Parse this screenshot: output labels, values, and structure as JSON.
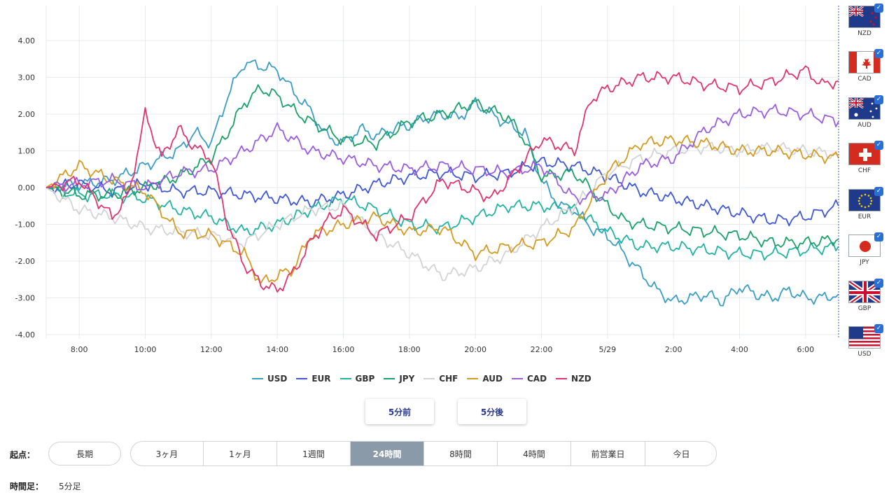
{
  "chart_data": {
    "type": "line",
    "x_tick_labels": [
      "8:00",
      "10:00",
      "12:00",
      "14:00",
      "16:00",
      "18:00",
      "20:00",
      "22:00",
      "5/29",
      "2:00",
      "4:00",
      "6:00"
    ],
    "x_tick_hours": [
      1,
      3,
      5,
      7,
      9,
      11,
      13,
      15,
      17,
      19,
      21,
      23
    ],
    "x_range_hours": [
      0,
      24
    ],
    "ylim": [
      -4.0,
      4.0
    ],
    "y_ticks": [
      "4.00",
      "3.00",
      "2.00",
      "1.00",
      "0.00",
      "-1.00",
      "-2.00",
      "-3.00",
      "-4.00"
    ],
    "grid": true,
    "legend_position": "bottom",
    "series": [
      {
        "name": "USD",
        "color": "#3a9dc4",
        "points": [
          [
            0,
            0
          ],
          [
            1,
            0.1
          ],
          [
            2,
            0.2
          ],
          [
            3,
            0.6
          ],
          [
            4,
            1.0
          ],
          [
            4.5,
            1.5
          ],
          [
            5,
            1.2
          ],
          [
            5.5,
            2.5
          ],
          [
            6,
            3.4
          ],
          [
            6.5,
            3.3
          ],
          [
            7,
            3.2
          ],
          [
            7.5,
            2.6
          ],
          [
            8,
            2.1
          ],
          [
            8.5,
            1.4
          ],
          [
            9,
            1.2
          ],
          [
            9.5,
            1.6
          ],
          [
            10,
            1.4
          ],
          [
            10.5,
            1.6
          ],
          [
            11,
            1.7
          ],
          [
            11.5,
            1.9
          ],
          [
            12,
            2.0
          ],
          [
            12.5,
            1.9
          ],
          [
            13,
            2.3
          ],
          [
            13.5,
            2.0
          ],
          [
            14,
            1.7
          ],
          [
            14.5,
            1.5
          ],
          [
            15,
            0.2
          ],
          [
            15.3,
            -0.2
          ],
          [
            15.6,
            -0.5
          ],
          [
            16,
            -0.6
          ],
          [
            16.5,
            -1.1
          ],
          [
            17,
            -1.3
          ],
          [
            17.5,
            -1.8
          ],
          [
            18,
            -2.3
          ],
          [
            18.5,
            -2.8
          ],
          [
            19,
            -3.1
          ],
          [
            19.5,
            -3.0
          ],
          [
            20,
            -2.9
          ],
          [
            20.5,
            -3.1
          ],
          [
            21,
            -2.7
          ],
          [
            21.5,
            -2.9
          ],
          [
            22,
            -3.0
          ],
          [
            22.5,
            -2.8
          ],
          [
            23,
            -3.0
          ],
          [
            23.5,
            -3.0
          ],
          [
            24,
            -2.9
          ]
        ]
      },
      {
        "name": "EUR",
        "color": "#3d57d6",
        "points": [
          [
            0,
            0
          ],
          [
            1,
            0.1
          ],
          [
            2,
            -0.1
          ],
          [
            3,
            0.1
          ],
          [
            4,
            -0.1
          ],
          [
            5,
            -0.1
          ],
          [
            6,
            -0.2
          ],
          [
            7,
            -0.3
          ],
          [
            8,
            -0.4
          ],
          [
            9,
            -0.2
          ],
          [
            10,
            0.1
          ],
          [
            11,
            0.3
          ],
          [
            12,
            0.4
          ],
          [
            13,
            0.3
          ],
          [
            14,
            0.4
          ],
          [
            15,
            0.7
          ],
          [
            16,
            0.6
          ],
          [
            17,
            0.3
          ],
          [
            18,
            -0.1
          ],
          [
            19,
            -0.3
          ],
          [
            20,
            -0.5
          ],
          [
            21,
            -0.7
          ],
          [
            22,
            -0.9
          ],
          [
            23,
            -0.8
          ],
          [
            24,
            -0.5
          ]
        ]
      },
      {
        "name": "GBP",
        "color": "#21b3a3",
        "points": [
          [
            0,
            0
          ],
          [
            1,
            -0.2
          ],
          [
            2,
            -0.2
          ],
          [
            3,
            -0.3
          ],
          [
            4,
            -0.6
          ],
          [
            5,
            -0.8
          ],
          [
            6,
            -1.2
          ],
          [
            7,
            -1.0
          ],
          [
            8,
            -0.6
          ],
          [
            9,
            -0.3
          ],
          [
            10,
            -0.6
          ],
          [
            11,
            -1.0
          ],
          [
            12,
            -1.1
          ],
          [
            13,
            -0.8
          ],
          [
            14,
            -0.5
          ],
          [
            15,
            -0.5
          ],
          [
            16,
            -0.6
          ],
          [
            17,
            -1.2
          ],
          [
            18,
            -1.6
          ],
          [
            19,
            -1.6
          ],
          [
            20,
            -1.7
          ],
          [
            21,
            -1.8
          ],
          [
            22,
            -1.8
          ],
          [
            23,
            -1.7
          ],
          [
            24,
            -1.6
          ]
        ]
      },
      {
        "name": "JPY",
        "color": "#1aa168",
        "points": [
          [
            0,
            0
          ],
          [
            1,
            -0.2
          ],
          [
            2,
            -0.2
          ],
          [
            3,
            0.0
          ],
          [
            4,
            0.3
          ],
          [
            5,
            0.8
          ],
          [
            5.5,
            1.5
          ],
          [
            6,
            2.3
          ],
          [
            6.5,
            2.7
          ],
          [
            7,
            2.5
          ],
          [
            7.5,
            2.1
          ],
          [
            8,
            1.8
          ],
          [
            9,
            1.3
          ],
          [
            10,
            1.2
          ],
          [
            11,
            1.8
          ],
          [
            12,
            2.0
          ],
          [
            13,
            2.3
          ],
          [
            14,
            1.9
          ],
          [
            14.5,
            1.3
          ],
          [
            15,
            0.3
          ],
          [
            16,
            0.4
          ],
          [
            17,
            -0.5
          ],
          [
            17.5,
            -0.9
          ],
          [
            18,
            -1.0
          ],
          [
            19,
            -1.1
          ],
          [
            20,
            -1.2
          ],
          [
            21,
            -1.3
          ],
          [
            22,
            -1.5
          ],
          [
            23,
            -1.5
          ],
          [
            24,
            -1.4
          ]
        ]
      },
      {
        "name": "CHF",
        "color": "#d3d3d3",
        "points": [
          [
            0,
            0
          ],
          [
            1,
            -0.6
          ],
          [
            2,
            -0.8
          ],
          [
            3,
            -1.1
          ],
          [
            4,
            -1.2
          ],
          [
            5,
            -1.3
          ],
          [
            6,
            -1.5
          ],
          [
            7,
            -1.0
          ],
          [
            8,
            -0.6
          ],
          [
            9,
            -0.5
          ],
          [
            10,
            -1.3
          ],
          [
            11,
            -1.8
          ],
          [
            12,
            -2.4
          ],
          [
            13,
            -2.2
          ],
          [
            14,
            -1.8
          ],
          [
            15,
            -1.1
          ],
          [
            16,
            -0.5
          ],
          [
            17,
            0.4
          ],
          [
            18,
            0.8
          ],
          [
            19,
            1.0
          ],
          [
            20,
            1.1
          ],
          [
            21,
            1.0
          ],
          [
            22,
            1.1
          ],
          [
            23,
            1.0
          ],
          [
            24,
            0.9
          ]
        ]
      },
      {
        "name": "AUD",
        "color": "#d49b20",
        "points": [
          [
            0,
            0
          ],
          [
            1,
            0.6
          ],
          [
            2,
            0.2
          ],
          [
            3,
            -0.1
          ],
          [
            4,
            -1.2
          ],
          [
            5,
            -1.3
          ],
          [
            6,
            -1.8
          ],
          [
            6.5,
            -2.6
          ],
          [
            7,
            -2.4
          ],
          [
            7.5,
            -2.2
          ],
          [
            8,
            -1.3
          ],
          [
            9,
            -1.0
          ],
          [
            10,
            -0.8
          ],
          [
            11,
            -1.2
          ],
          [
            12,
            -1.1
          ],
          [
            13,
            -1.8
          ],
          [
            14,
            -1.6
          ],
          [
            15,
            -1.5
          ],
          [
            16,
            -1.1
          ],
          [
            17,
            0.4
          ],
          [
            18,
            1.2
          ],
          [
            19,
            1.3
          ],
          [
            20,
            1.2
          ],
          [
            21,
            1.0
          ],
          [
            22,
            1.0
          ],
          [
            23,
            0.9
          ],
          [
            24,
            0.8
          ]
        ]
      },
      {
        "name": "CAD",
        "color": "#9a5de0",
        "points": [
          [
            0,
            0
          ],
          [
            1,
            0.1
          ],
          [
            2,
            0.2
          ],
          [
            3,
            0.0
          ],
          [
            4,
            0.4
          ],
          [
            5,
            0.5
          ],
          [
            6,
            1.0
          ],
          [
            7,
            1.6
          ],
          [
            8,
            1.0
          ],
          [
            9,
            0.8
          ],
          [
            10,
            0.6
          ],
          [
            11,
            0.5
          ],
          [
            12,
            0.6
          ],
          [
            13,
            0.5
          ],
          [
            14,
            0.4
          ],
          [
            15,
            0.6
          ],
          [
            16,
            -0.3
          ],
          [
            17,
            -0.2
          ],
          [
            18,
            0.6
          ],
          [
            19,
            0.8
          ],
          [
            20,
            1.6
          ],
          [
            21,
            2.0
          ],
          [
            22,
            2.1
          ],
          [
            23,
            2.0
          ],
          [
            24,
            1.8
          ]
        ]
      },
      {
        "name": "NZD",
        "color": "#e0356c",
        "points": [
          [
            0,
            0
          ],
          [
            1,
            0.2
          ],
          [
            2,
            -0.8
          ],
          [
            2.5,
            -0.2
          ],
          [
            3,
            2.0
          ],
          [
            3.5,
            0.8
          ],
          [
            4,
            1.6
          ],
          [
            4.5,
            1.1
          ],
          [
            5,
            0.8
          ],
          [
            5.5,
            -1.0
          ],
          [
            6,
            -2.1
          ],
          [
            6.5,
            -2.6
          ],
          [
            7,
            -2.8
          ],
          [
            7.5,
            -2.3
          ],
          [
            8,
            -1.5
          ],
          [
            8.5,
            -0.9
          ],
          [
            9,
            -0.6
          ],
          [
            10,
            -1.3
          ],
          [
            11,
            -0.8
          ],
          [
            12,
            0.2
          ],
          [
            13,
            -0.1
          ],
          [
            13.5,
            -0.3
          ],
          [
            14,
            0.2
          ],
          [
            15,
            1.3
          ],
          [
            16,
            1.0
          ],
          [
            16.5,
            2.4
          ],
          [
            17,
            2.7
          ],
          [
            18,
            3.0
          ],
          [
            19,
            3.0
          ],
          [
            20,
            2.8
          ],
          [
            21,
            2.7
          ],
          [
            22,
            2.9
          ],
          [
            23,
            3.2
          ],
          [
            23.5,
            2.8
          ],
          [
            24,
            2.9
          ]
        ]
      }
    ]
  },
  "navigation": {
    "prev_label": "5分前",
    "next_label": "5分後"
  },
  "start_point": {
    "label": "起点：",
    "long_term": "長期",
    "ranges": [
      {
        "label": "3ヶ月",
        "active": false
      },
      {
        "label": "1ヶ月",
        "active": false
      },
      {
        "label": "1週間",
        "active": false
      },
      {
        "label": "24時間",
        "active": true
      },
      {
        "label": "8時間",
        "active": false
      },
      {
        "label": "4時間",
        "active": false
      },
      {
        "label": "前営業日",
        "active": false
      },
      {
        "label": "今日",
        "active": false
      }
    ]
  },
  "timeframe": {
    "label": "時間足：",
    "value": "5分足"
  },
  "currency_panel": [
    {
      "code": "NZD",
      "flag": "new-zealand-flag-icon",
      "checked": true
    },
    {
      "code": "CAD",
      "flag": "canada-flag-icon",
      "checked": true
    },
    {
      "code": "AUD",
      "flag": "australia-flag-icon",
      "checked": true
    },
    {
      "code": "CHF",
      "flag": "switzerland-flag-icon",
      "checked": true
    },
    {
      "code": "EUR",
      "flag": "eu-flag-icon",
      "checked": true
    },
    {
      "code": "JPY",
      "flag": "japan-flag-icon",
      "checked": true
    },
    {
      "code": "GBP",
      "flag": "uk-flag-icon",
      "checked": true
    },
    {
      "code": "USD",
      "flag": "us-flag-icon",
      "checked": true
    }
  ]
}
